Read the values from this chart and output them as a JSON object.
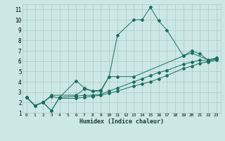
{
  "xlabel": "Humidex (Indice chaleur)",
  "ylabel": "",
  "bg_color": "#cce8e4",
  "grid_color": "#b0c8c4",
  "line_color": "#1a6e5e",
  "xlim": [
    -0.5,
    23.5
  ],
  "ylim": [
    1,
    11.5
  ],
  "xticks": [
    0,
    1,
    2,
    3,
    4,
    5,
    6,
    7,
    8,
    9,
    10,
    11,
    12,
    13,
    14,
    15,
    16,
    17,
    18,
    19,
    20,
    21,
    22,
    23
  ],
  "yticks": [
    1,
    2,
    3,
    4,
    5,
    6,
    7,
    8,
    9,
    10,
    11
  ],
  "series": [
    {
      "x": [
        0,
        1,
        2,
        3,
        4,
        6,
        7,
        8,
        9,
        10,
        11,
        13,
        14,
        15,
        16,
        17,
        19,
        20,
        21,
        22,
        23
      ],
      "y": [
        2.5,
        1.7,
        2.0,
        1.2,
        2.5,
        4.1,
        3.4,
        3.1,
        3.1,
        4.5,
        8.5,
        10.0,
        10.0,
        11.2,
        9.9,
        9.0,
        6.5,
        7.0,
        6.7,
        6.1,
        6.3
      ]
    },
    {
      "x": [
        0,
        1,
        2,
        3,
        6,
        7,
        8,
        9,
        10,
        11,
        13,
        19,
        20,
        22,
        23
      ],
      "y": [
        2.5,
        1.7,
        2.0,
        2.7,
        2.7,
        3.3,
        3.1,
        3.2,
        4.5,
        4.5,
        4.5,
        6.5,
        6.8,
        6.1,
        6.3
      ]
    },
    {
      "x": [
        0,
        1,
        2,
        3,
        4,
        6,
        7,
        8,
        9,
        10,
        11,
        13,
        14,
        15,
        16,
        17,
        19,
        20,
        21,
        22,
        23
      ],
      "y": [
        2.5,
        1.7,
        2.0,
        1.2,
        2.5,
        2.6,
        2.7,
        2.7,
        2.8,
        3.1,
        3.4,
        4.0,
        4.3,
        4.6,
        4.9,
        5.1,
        5.7,
        5.9,
        6.1,
        6.0,
        6.2
      ]
    },
    {
      "x": [
        0,
        1,
        2,
        3,
        4,
        6,
        7,
        8,
        9,
        10,
        11,
        13,
        14,
        15,
        16,
        17,
        19,
        20,
        21,
        22,
        23
      ],
      "y": [
        2.5,
        1.7,
        2.0,
        2.6,
        2.4,
        2.4,
        2.5,
        2.6,
        2.7,
        2.9,
        3.1,
        3.6,
        3.8,
        4.0,
        4.3,
        4.6,
        5.3,
        5.5,
        5.8,
        5.9,
        6.1
      ]
    }
  ]
}
